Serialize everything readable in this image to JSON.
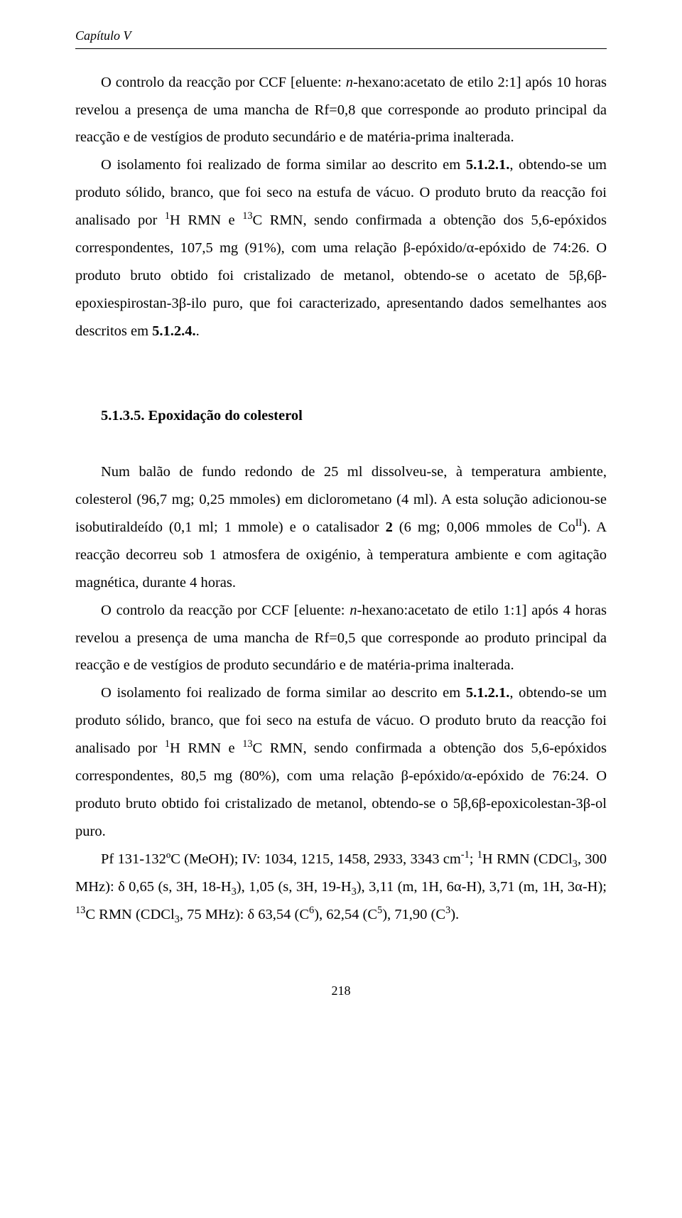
{
  "page": {
    "chapter_header": "Capítulo V",
    "page_number": "218",
    "background_color": "#ffffff",
    "text_color": "#000000",
    "font_family": "Times New Roman",
    "base_fontsize_pt": 12,
    "line_height": 1.9
  },
  "p1": {
    "t1": "O controlo da reacção por CCF [eluente: ",
    "t2": "n",
    "t3": "-hexano:acetato de etilo 2:1] após 10 horas revelou a presença de uma mancha de Rf=0,8 que corresponde ao produto principal da reacção e de vestígios de produto secundário e de matéria-prima inalterada."
  },
  "p2": {
    "t1": "O isolamento foi realizado de forma similar ao descrito em ",
    "t2": "5.1.2.1.",
    "t3": ", obtendo-se um produto sólido, branco, que foi seco na estufa de vácuo. O produto bruto da reacção foi analisado por ",
    "t4": "1",
    "t5": "H RMN e ",
    "t6": "13",
    "t7": "C RMN, sendo confirmada a obtenção dos 5,6-epóxidos correspondentes, 107,5 mg (91%), com uma relação β-epóxido/α-epóxido de 74:26. O produto bruto obtido foi cristalizado de metanol, obtendo-se o acetato de 5β,6β-epoxiespirostan-3β-ilo puro, que foi caracterizado, apresentando dados semelhantes aos descritos em ",
    "t8": "5.1.2.4.",
    "t9": "."
  },
  "section_heading": "5.1.3.5. Epoxidação do colesterol",
  "p3": {
    "t1": "Num balão de fundo redondo de 25 ml dissolveu-se, à temperatura ambiente, colesterol (96,7 mg; 0,25 mmoles) em diclorometano (4 ml). A esta solução adicionou-se isobutiraldeído (0,1 ml; 1 mmole) e o catalisador ",
    "t2": "2",
    "t3": " (6 mg; 0,006 mmoles de Co",
    "t4": "II",
    "t5": "). A reacção decorreu sob 1 atmosfera de oxigénio, à temperatura ambiente e com agitação magnética, durante 4 horas."
  },
  "p4": {
    "t1": "O controlo da reacção por CCF [eluente: ",
    "t2": "n",
    "t3": "-hexano:acetato de etilo 1:1] após 4 horas revelou a presença de uma mancha de Rf=0,5 que corresponde ao produto principal da reacção e de vestígios de produto secundário e de matéria-prima inalterada."
  },
  "p5": {
    "t1": "O isolamento foi realizado de forma similar ao descrito em ",
    "t2": "5.1.2.1.",
    "t3": ", obtendo-se um produto sólido, branco, que foi seco na estufa de vácuo. O produto bruto da reacção foi analisado por ",
    "t4": "1",
    "t5": "H RMN e ",
    "t6": "13",
    "t7": "C RMN, sendo confirmada a obtenção dos 5,6-epóxidos correspondentes, 80,5 mg (80%), com uma relação β-epóxido/α-epóxido de 76:24. O produto bruto obtido foi cristalizado de metanol, obtendo-se o 5β,6β-epoxicolestan-3β-ol puro."
  },
  "p6": {
    "t1": "Pf 131-132ºC (MeOH); IV: 1034, 1215, 1458, 2933, 3343 cm",
    "t2": "-1",
    "t3": "; ",
    "t4": "1",
    "t5": "H RMN (CDCl",
    "t6": "3",
    "t7": ", 300 MHz): δ 0,65 (s, 3H, 18-H",
    "t8": "3",
    "t9": "), 1,05 (s, 3H, 19-H",
    "t10": "3",
    "t11": "), 3,11 (m, 1H, 6α-H), 3,71 (m, 1H, 3α-H); ",
    "t12": "13",
    "t13": "C RMN (CDCl",
    "t14": "3",
    "t15": ", 75 MHz): δ 63,54 (C",
    "t16": "6",
    "t17": "), 62,54 (C",
    "t18": "5",
    "t19": "), 71,90 (C",
    "t20": "3",
    "t21": ")."
  }
}
